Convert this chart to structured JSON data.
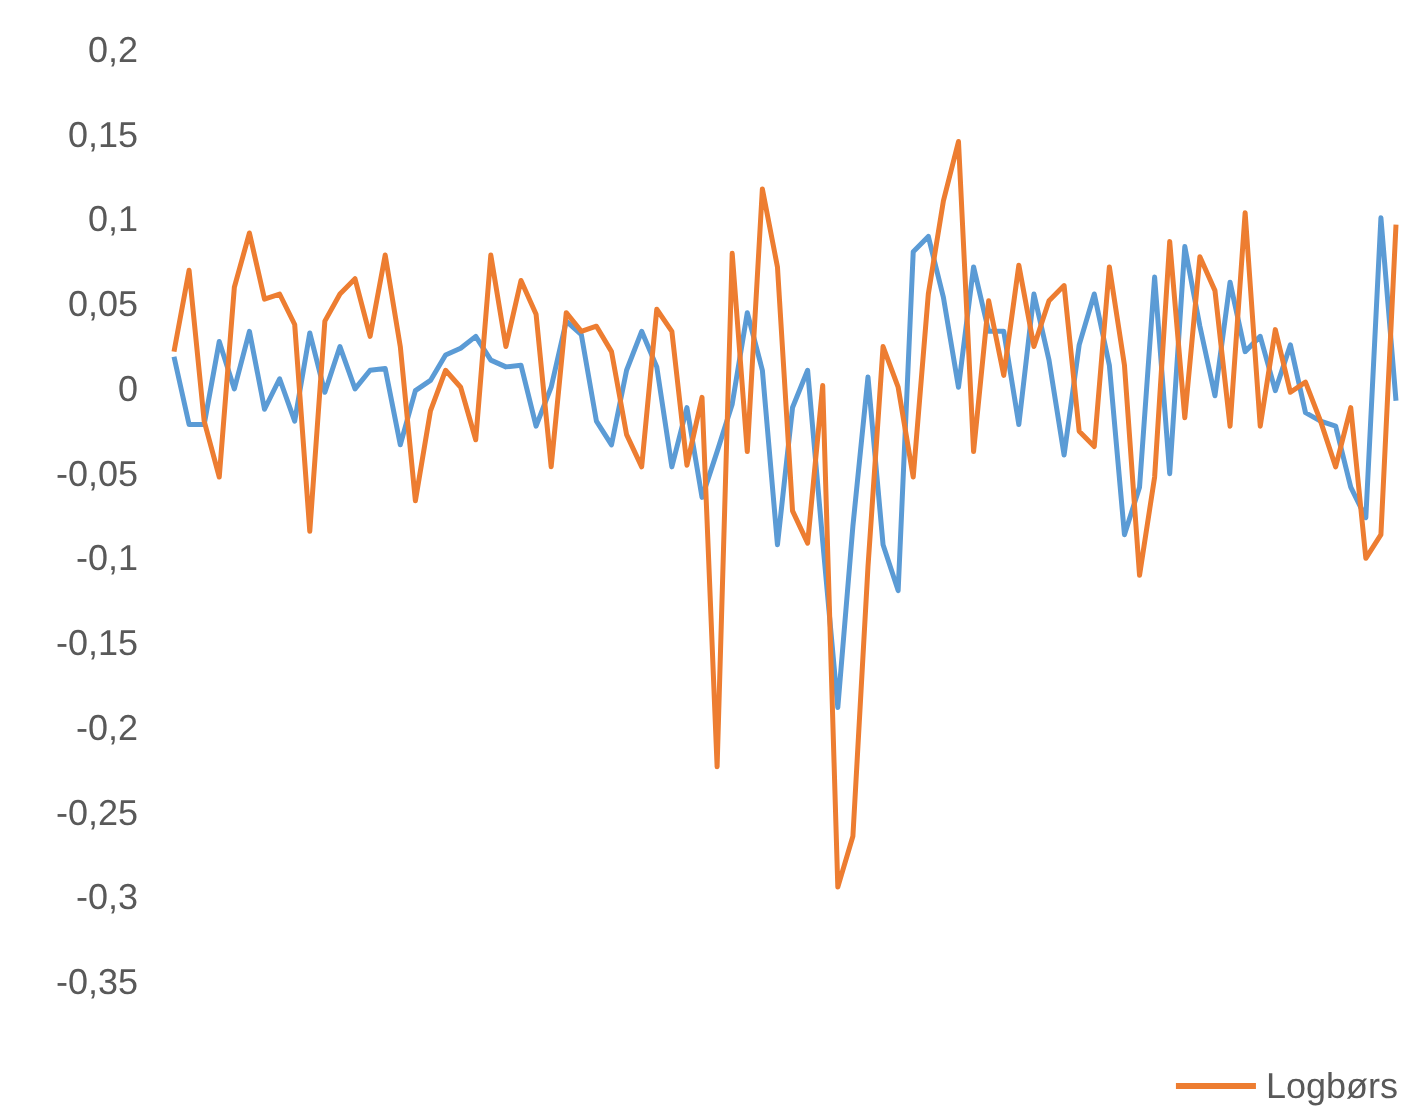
{
  "chart_data": {
    "type": "line",
    "categories": [
      null,
      null,
      null,
      null,
      null,
      null,
      null,
      null,
      null,
      null,
      null,
      null,
      null,
      null,
      null,
      null,
      null,
      null,
      null,
      null,
      null,
      null,
      null,
      null,
      null,
      null,
      null,
      null,
      null,
      null,
      null,
      null,
      null,
      null,
      null,
      null,
      null,
      null,
      null,
      null,
      null,
      null,
      null,
      null,
      null,
      null,
      null,
      null,
      null,
      null,
      null,
      null,
      null,
      null,
      null,
      null,
      null,
      null,
      null,
      null,
      null,
      null,
      null,
      null,
      null,
      null,
      null,
      null,
      null,
      null,
      null,
      null,
      null,
      null,
      null,
      null,
      null,
      null,
      null,
      null,
      null,
      null
    ],
    "series": [
      {
        "color": "#5b9bd5",
        "values": [
          0.019,
          -0.021,
          -0.021,
          0.028,
          0,
          0.034,
          -0.012,
          0.006,
          -0.019,
          0.033,
          -0.002,
          0.025,
          0,
          0.011,
          0.012,
          -0.033,
          -0.001,
          0.005,
          0.02,
          0.024,
          0.031,
          0.017,
          0.013,
          0.014,
          -0.022,
          0.001,
          0.04,
          0.032,
          -0.019,
          -0.033,
          0.011,
          0.034,
          0.013,
          -0.046,
          -0.011,
          -0.064,
          -0.037,
          -0.009,
          0.045,
          0.011,
          -0.092,
          -0.011,
          0.011,
          -0.09,
          -0.188,
          -0.081,
          0.007,
          -0.092,
          -0.119,
          0.081,
          0.09,
          0.054,
          0.001,
          0.072,
          0.034,
          0.034,
          -0.021,
          0.056,
          0.017,
          -0.039,
          0.026,
          0.056,
          0.014,
          -0.086,
          -0.058,
          0.066,
          -0.05,
          0.084,
          0.037,
          -0.004,
          0.063,
          0.022,
          0.031,
          -0.001,
          0.026,
          -0.014,
          -0.019,
          -0.022,
          -0.058,
          -0.076,
          0.101,
          -0.007
        ]
      },
      {
        "name": "Logbørs",
        "color": "#ed7d31",
        "values": [
          0.022,
          0.07,
          -0.019,
          -0.052,
          0.06,
          0.092,
          0.053,
          0.056,
          0.038,
          -0.084,
          0.04,
          0.056,
          0.065,
          0.031,
          0.079,
          0.025,
          -0.066,
          -0.013,
          0.011,
          0.001,
          -0.03,
          0.079,
          0.025,
          0.064,
          0.044,
          -0.046,
          0.045,
          0.034,
          0.037,
          0.022,
          -0.027,
          -0.046,
          0.047,
          0.034,
          -0.045,
          -0.005,
          -0.223,
          0.08,
          -0.037,
          0.118,
          0.072,
          -0.072,
          -0.091,
          0.002,
          -0.294,
          -0.264,
          -0.105,
          0.025,
          0.001,
          -0.052,
          0.056,
          0.111,
          0.146,
          -0.037,
          0.052,
          0.008,
          0.073,
          0.025,
          0.052,
          0.061,
          -0.025,
          -0.034,
          0.072,
          0.014,
          -0.11,
          -0.052,
          0.087,
          -0.017,
          0.078,
          0.058,
          -0.022,
          0.104,
          -0.022,
          0.035,
          -0.002,
          0.004,
          -0.019,
          -0.046,
          -0.011,
          -0.1,
          -0.086,
          0.097
        ]
      }
    ],
    "ylim": [
      -0.35,
      0.2
    ],
    "yticks": [
      {
        "value": -0.35,
        "label": "-0,35"
      },
      {
        "value": -0.3,
        "label": "-0,3"
      },
      {
        "value": -0.25,
        "label": "-0,25"
      },
      {
        "value": -0.2,
        "label": "-0,2"
      },
      {
        "value": -0.15,
        "label": "-0,15"
      },
      {
        "value": -0.1,
        "label": "-0,1"
      },
      {
        "value": -0.05,
        "label": "-0,05"
      },
      {
        "value": 0,
        "label": "0"
      },
      {
        "value": 0.05,
        "label": "0,05"
      },
      {
        "value": 0.1,
        "label": "0,1"
      },
      {
        "value": 0.15,
        "label": "0,15"
      },
      {
        "value": 0.2,
        "label": "0,2"
      }
    ],
    "tick_labels": "y",
    "legend": "bottom right",
    "line_style": "solid"
  }
}
